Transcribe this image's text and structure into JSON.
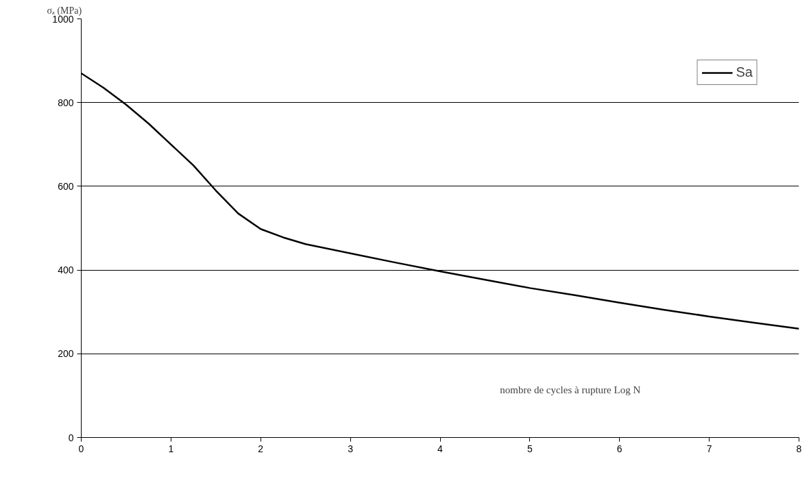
{
  "chart_data": {
    "type": "line",
    "xlabel": "nombre de cycles à rupture Log N",
    "ylabel": "σₐ (MPa)",
    "x": [
      0,
      0.25,
      0.5,
      0.75,
      1,
      1.25,
      1.5,
      1.75,
      2,
      2.25,
      2.5,
      3,
      3.5,
      4,
      4.5,
      5,
      5.5,
      6,
      6.5,
      7,
      7.5,
      8
    ],
    "series": [
      {
        "name": "Sa",
        "color": "#000000",
        "values": [
          870,
          835,
          795,
          750,
          700,
          650,
          590,
          535,
          498,
          478,
          462,
          440,
          418,
          397,
          377,
          357,
          340,
          322,
          305,
          289,
          274,
          260
        ]
      }
    ],
    "xlim": [
      0,
      8
    ],
    "ylim": [
      0,
      1000
    ],
    "xticks": [
      0,
      1,
      2,
      3,
      4,
      5,
      6,
      7,
      8
    ],
    "yticks": [
      0,
      200,
      400,
      600,
      800,
      1000
    ],
    "grid": "y",
    "legend": "top right",
    "marker": "none",
    "line_style": "solid"
  }
}
